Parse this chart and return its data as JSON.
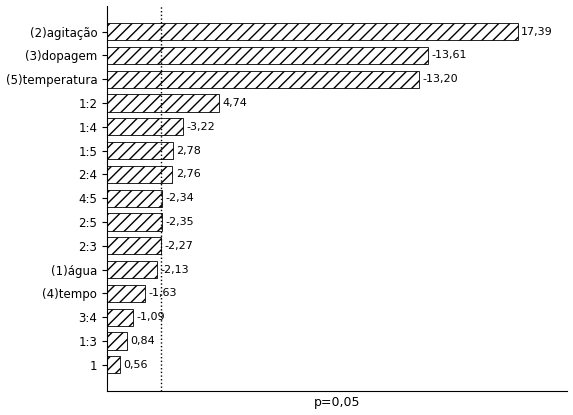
{
  "categories": [
    "(2)agitação",
    "(3)dopagem",
    "(5)temperatura",
    "1:2",
    "1:4",
    "1:5",
    "2:4",
    "4:5",
    "2:5",
    "2:3",
    "(1)água",
    "(4)tempo",
    "3:4",
    "1:3",
    "1"
  ],
  "values": [
    17.39,
    13.61,
    13.2,
    4.74,
    3.22,
    2.78,
    2.76,
    2.34,
    2.35,
    2.27,
    2.13,
    1.63,
    1.09,
    0.84,
    0.56
  ],
  "labels": [
    "17,39",
    "-13,61",
    "-13,20",
    "4,74",
    "-3,22",
    "2,78",
    "2,76",
    "-2,34",
    "-2,35",
    "-2,27",
    "-2,13",
    "-1,63",
    "-1,09",
    "0,84",
    "0,56"
  ],
  "p_line": 2.306,
  "p_label": "p=0,05",
  "hatch": "///",
  "bar_color": "white",
  "edge_color": "black",
  "xlim": [
    0,
    19.5
  ],
  "bar_height": 0.72,
  "ylabel_fontsize": 8.5,
  "value_fontsize": 8,
  "p_fontsize": 9,
  "figsize": [
    5.73,
    4.15
  ],
  "dpi": 100
}
